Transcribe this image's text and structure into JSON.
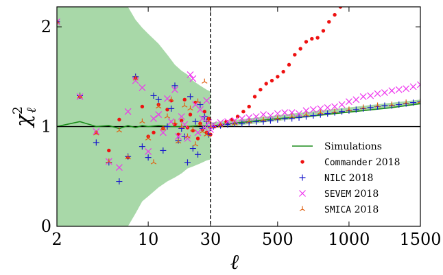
{
  "chart_data": {
    "type": "scatter",
    "title": "",
    "xlabel": "ℓ",
    "ylabel": "χ",
    "ylabel_sup": "2",
    "ylabel_sub": "ℓ",
    "x_scale": "piecewise: log for ℓ 2–30, linear for ℓ 30–1500",
    "x_ticks": [
      {
        "value": 2,
        "label": "2"
      },
      {
        "value": 10,
        "label": "10"
      },
      {
        "value": 30,
        "label": "30"
      },
      {
        "value": 500,
        "label": "500"
      },
      {
        "value": 1000,
        "label": "1000"
      },
      {
        "value": 1500,
        "label": "1500"
      }
    ],
    "y_ticks": [
      {
        "value": 0,
        "label": "0"
      },
      {
        "value": 1,
        "label": "1"
      },
      {
        "value": 2,
        "label": "2"
      }
    ],
    "xlim": [
      2,
      1500
    ],
    "ylim": [
      0,
      2.2
    ],
    "reference_line_y": 1,
    "vertical_line_x": 30,
    "grid": false,
    "legend_position": "lower-right",
    "colors": {
      "band": "#a8d8a8",
      "simulations": "#1a8c1a",
      "commander": "#ee1111",
      "nilc": "#1a1acc",
      "sevem": "#ee33ee",
      "smica": "#e06010"
    },
    "band": {
      "name": "Simulations",
      "x": [
        2,
        2.5,
        3,
        3.5,
        4,
        5,
        6,
        7,
        8,
        9,
        10,
        12,
        14,
        16,
        18,
        20,
        22,
        25,
        28,
        30
      ],
      "upper": [
        2.2,
        2.2,
        2.2,
        2.2,
        2.2,
        2.2,
        2.2,
        2.2,
        2.07,
        1.99,
        1.93,
        1.83,
        1.72,
        1.62,
        1.56,
        1.52,
        1.46,
        1.41,
        1.37,
        1.35
      ],
      "lower": [
        0,
        0,
        0,
        0,
        0,
        0,
        0,
        0,
        0.13,
        0.25,
        0.3,
        0.39,
        0.45,
        0.49,
        0.53,
        0.58,
        0.6,
        0.63,
        0.66,
        0.67
      ]
    },
    "band_high_ell": {
      "x": [
        30,
        1500
      ],
      "upper": [
        1.04,
        1.27
      ],
      "lower": [
        0.98,
        1.22
      ]
    },
    "series": [
      {
        "name": "Simulations",
        "kind": "line",
        "x": [
          2,
          3,
          4,
          5,
          6,
          7,
          8,
          9,
          10,
          12,
          15,
          20,
          25,
          30,
          100,
          300,
          500,
          700,
          900,
          1100,
          1300,
          1500
        ],
        "y": [
          1.0,
          1.05,
          1.0,
          1.01,
          0.98,
          1.01,
          0.99,
          1.01,
          1.0,
          1.01,
          1.0,
          1.0,
          1.01,
          1.0,
          1.02,
          1.05,
          1.08,
          1.1,
          1.13,
          1.16,
          1.19,
          1.23
        ]
      },
      {
        "name": "Commander",
        "name_suffix": " 2018",
        "kind": "dot",
        "x": [
          2,
          3,
          4,
          5,
          6,
          7,
          8,
          9,
          10,
          11,
          12,
          13,
          14,
          15,
          16,
          17,
          18,
          19,
          20,
          21,
          22,
          23,
          24,
          25,
          26,
          27,
          28,
          29,
          30,
          60,
          100,
          140,
          180,
          220,
          260,
          300,
          340,
          380,
          420,
          460,
          500,
          540,
          580,
          620,
          660,
          700,
          740,
          780,
          820,
          860,
          900,
          940
        ],
        "y": [
          2.05,
          1.3,
          0.94,
          0.76,
          1.07,
          0.69,
          1.49,
          1.2,
          0.9,
          0.94,
          1.22,
          0.98,
          1.17,
          1.26,
          1.02,
          0.92,
          1.06,
          1.27,
          0.99,
          1.12,
          0.96,
          1.24,
          0.88,
          1.03,
          0.97,
          1.15,
          0.94,
          1.08,
          0.92,
          1.0,
          1.02,
          1.05,
          1.07,
          1.1,
          1.15,
          1.2,
          1.3,
          1.37,
          1.43,
          1.46,
          1.5,
          1.55,
          1.62,
          1.72,
          1.78,
          1.85,
          1.88,
          1.89,
          1.96,
          2.05,
          2.12,
          2.2
        ]
      },
      {
        "name": "NILC",
        "name_suffix": " 2018",
        "kind": "plus",
        "x": [
          2,
          3,
          4,
          5,
          6,
          7,
          8,
          9,
          10,
          11,
          12,
          13,
          14,
          15,
          16,
          17,
          18,
          19,
          20,
          21,
          22,
          23,
          24,
          25,
          26,
          27,
          28,
          29,
          30,
          50,
          100,
          150,
          200,
          250,
          300,
          350,
          400,
          450,
          500,
          550,
          600,
          650,
          700,
          750,
          800,
          850,
          900,
          950,
          1000,
          1050,
          1100,
          1150,
          1200,
          1250,
          1300,
          1350,
          1400,
          1450,
          1500
        ],
        "y": [
          2.05,
          1.31,
          0.84,
          0.64,
          0.45,
          0.7,
          1.5,
          0.8,
          0.69,
          1.31,
          1.27,
          0.76,
          1.0,
          1.18,
          1.41,
          0.86,
          0.98,
          0.9,
          0.64,
          1.3,
          0.78,
          1.05,
          0.72,
          1.22,
          0.98,
          1.1,
          1.05,
          0.92,
          1.0,
          1.0,
          1.01,
          1.02,
          1.03,
          1.03,
          1.04,
          1.05,
          1.05,
          1.06,
          1.07,
          1.08,
          1.08,
          1.09,
          1.1,
          1.11,
          1.12,
          1.13,
          1.14,
          1.15,
          1.16,
          1.17,
          1.18,
          1.19,
          1.2,
          1.21,
          1.21,
          1.22,
          1.23,
          1.24,
          1.25
        ]
      },
      {
        "name": "SEVEM",
        "name_suffix": " 2018",
        "kind": "cross",
        "x": [
          2,
          3,
          4,
          5,
          6,
          7,
          8,
          9,
          10,
          11,
          12,
          13,
          14,
          15,
          16,
          17,
          18,
          19,
          20,
          21,
          22,
          23,
          24,
          25,
          26,
          27,
          28,
          29,
          30,
          50,
          100,
          150,
          200,
          250,
          300,
          350,
          400,
          450,
          500,
          550,
          600,
          650,
          700,
          750,
          800,
          850,
          900,
          950,
          1000,
          1050,
          1100,
          1150,
          1200,
          1250,
          1300,
          1350,
          1400,
          1450,
          1500
        ],
        "y": [
          2.05,
          1.3,
          0.95,
          0.65,
          0.59,
          1.15,
          1.46,
          1.39,
          0.75,
          1.08,
          1.12,
          0.94,
          1.28,
          1.05,
          1.37,
          0.9,
          1.1,
          1.02,
          0.88,
          1.52,
          1.48,
          1.22,
          0.94,
          1.17,
          1.08,
          0.99,
          1.26,
          1.04,
          0.97,
          1.02,
          1.04,
          1.05,
          1.06,
          1.08,
          1.09,
          1.1,
          1.12,
          1.11,
          1.13,
          1.14,
          1.14,
          1.13,
          1.16,
          1.17,
          1.18,
          1.19,
          1.2,
          1.22,
          1.25,
          1.27,
          1.3,
          1.31,
          1.33,
          1.34,
          1.36,
          1.37,
          1.38,
          1.4,
          1.42
        ]
      },
      {
        "name": "SMICA",
        "name_suffix": " 2018",
        "kind": "tri",
        "x": [
          2,
          3,
          4,
          5,
          6,
          7,
          8,
          9,
          10,
          11,
          12,
          13,
          14,
          15,
          16,
          17,
          18,
          19,
          20,
          21,
          22,
          23,
          24,
          25,
          26,
          27,
          28,
          29,
          30,
          100,
          200,
          300,
          400,
          500,
          600,
          700,
          800,
          900,
          1000,
          1100,
          1200,
          1300,
          1400,
          1500
        ],
        "y": [
          2.05,
          1.3,
          0.93,
          0.65,
          0.96,
          0.69,
          1.48,
          1.05,
          0.88,
          0.64,
          1.2,
          0.98,
          1.1,
          1.27,
          1.04,
          0.85,
          1.0,
          1.21,
          0.9,
          1.18,
          0.97,
          0.82,
          1.25,
          1.02,
          0.95,
          1.45,
          0.92,
          1.06,
          1.0,
          1.01,
          1.03,
          1.05,
          1.07,
          1.08,
          1.1,
          1.12,
          1.14,
          1.15,
          1.17,
          1.19,
          1.21,
          1.22,
          1.24,
          1.25
        ]
      }
    ]
  }
}
